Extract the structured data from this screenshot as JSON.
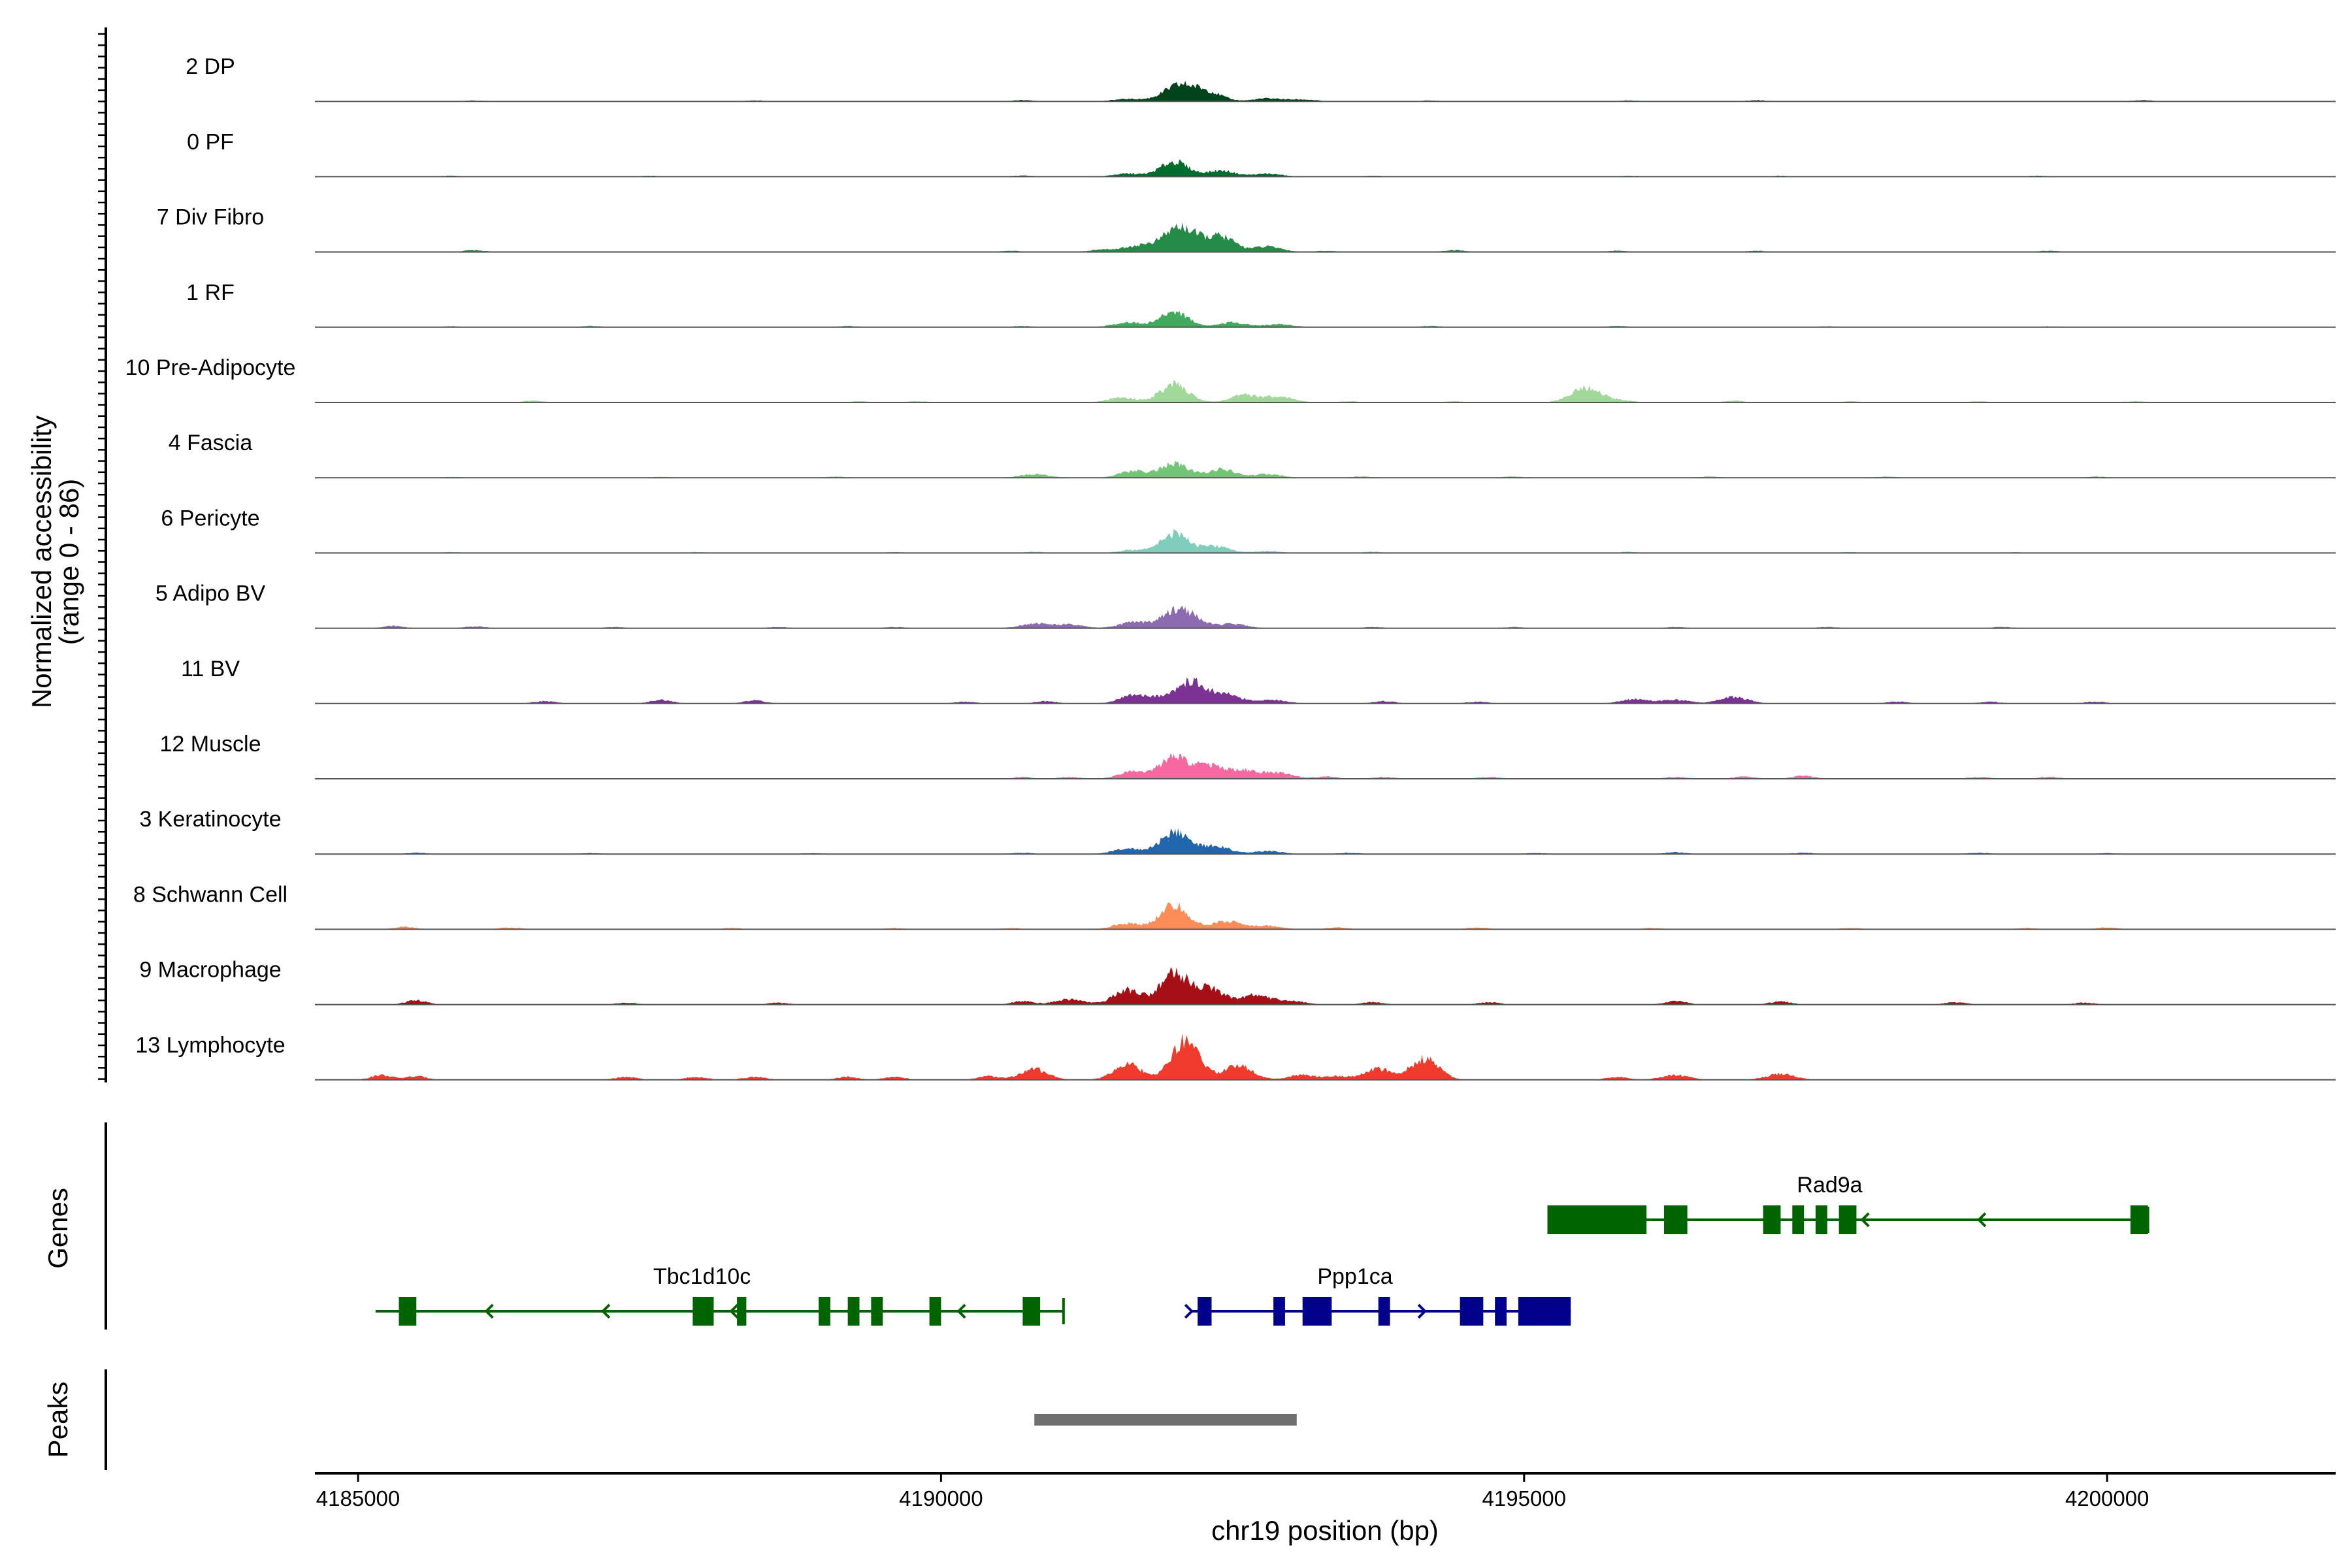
{
  "chart_data": {
    "type": "area",
    "title": "",
    "chromosome": "chr19",
    "xlabel": "chr19 position (bp)",
    "ylabel_line1": "Normalized accessibility",
    "ylabel_line2": "(range 0 - 86)",
    "ylim": [
      0,
      86
    ],
    "xlim": [
      4184630,
      4201960
    ],
    "x_ticks": [
      4185000,
      4190000,
      4195000,
      4200000
    ],
    "x_tick_labels": [
      "4185000",
      "4190000",
      "4195000",
      "4200000"
    ],
    "peak_center": 4192050,
    "tracks": [
      {
        "name": "2 DP",
        "color": "#00441B",
        "peaks": [
          [
            4192050,
            27
          ],
          [
            4192300,
            13
          ],
          [
            4191600,
            4
          ],
          [
            4192800,
            5
          ],
          [
            4193100,
            3
          ]
        ],
        "noise": [
          [
            4186000,
            1.5
          ],
          [
            4188400,
            1.5
          ],
          [
            4190700,
            2
          ],
          [
            4194200,
            1.5
          ],
          [
            4195900,
            1.5
          ],
          [
            4197000,
            2
          ],
          [
            4200300,
            2
          ]
        ]
      },
      {
        "name": "0 PF",
        "color": "#006D2C",
        "peaks": [
          [
            4192000,
            25
          ],
          [
            4192400,
            10
          ],
          [
            4191600,
            5
          ],
          [
            4192800,
            5
          ]
        ],
        "noise": [
          [
            4185800,
            1.5
          ],
          [
            4187500,
            1.5
          ],
          [
            4190700,
            2
          ],
          [
            4193700,
            1.5
          ],
          [
            4195900,
            1.5
          ],
          [
            4197200,
            1.5
          ],
          [
            4199400,
            1.5
          ]
        ]
      },
      {
        "name": "7 Div Fibro",
        "color": "#238B45",
        "peaks": [
          [
            4192050,
            42
          ],
          [
            4192400,
            25
          ],
          [
            4191700,
            10
          ],
          [
            4192800,
            9
          ],
          [
            4191400,
            4
          ]
        ],
        "noise": [
          [
            4186000,
            3
          ],
          [
            4190600,
            2
          ],
          [
            4193300,
            2
          ],
          [
            4194400,
            3
          ],
          [
            4195800,
            2
          ],
          [
            4197000,
            2
          ],
          [
            4199500,
            2
          ]
        ]
      },
      {
        "name": "1 RF",
        "color": "#41AB5D",
        "peaks": [
          [
            4192000,
            26
          ],
          [
            4192500,
            8
          ],
          [
            4191600,
            8
          ],
          [
            4192900,
            5
          ]
        ],
        "noise": [
          [
            4185800,
            1.5
          ],
          [
            4187000,
            2
          ],
          [
            4189200,
            2
          ],
          [
            4190700,
            2
          ],
          [
            4194200,
            2
          ],
          [
            4195800,
            2
          ],
          [
            4197600,
            1.5
          ],
          [
            4199500,
            1.5
          ]
        ]
      },
      {
        "name": "10 Pre-Adipocyte",
        "color": "#A1D99B",
        "peaks": [
          [
            4192000,
            30
          ],
          [
            4192600,
            12
          ],
          [
            4191550,
            8
          ],
          [
            4192900,
            10
          ],
          [
            4195500,
            20
          ],
          [
            4195650,
            8
          ]
        ],
        "noise": [
          [
            4186500,
            3
          ],
          [
            4189300,
            2
          ],
          [
            4189800,
            2
          ],
          [
            4193500,
            2
          ],
          [
            4194400,
            2
          ],
          [
            4195900,
            2
          ],
          [
            4196800,
            3
          ],
          [
            4197800,
            2
          ],
          [
            4198900,
            2
          ],
          [
            4200250,
            2
          ]
        ]
      },
      {
        "name": "4 Fascia",
        "color": "#74C476",
        "peaks": [
          [
            4192000,
            23
          ],
          [
            4192400,
            14
          ],
          [
            4191650,
            11
          ],
          [
            4192800,
            6
          ],
          [
            4190800,
            6
          ]
        ],
        "noise": [
          [
            4185800,
            1.5
          ],
          [
            4187600,
            1.5
          ],
          [
            4189100,
            2
          ],
          [
            4193600,
            2
          ],
          [
            4194900,
            2
          ],
          [
            4196600,
            2
          ],
          [
            4198100,
            2
          ],
          [
            4199900,
            2
          ]
        ]
      },
      {
        "name": "6 Pericyte",
        "color": "#7FCDBB",
        "peaks": [
          [
            4192000,
            33
          ],
          [
            4192350,
            11
          ],
          [
            4191650,
            5
          ],
          [
            4192800,
            3
          ]
        ],
        "noise": [
          [
            4185800,
            1.5
          ],
          [
            4187900,
            1.5
          ],
          [
            4189600,
            1.5
          ],
          [
            4190800,
            2
          ],
          [
            4193700,
            2
          ],
          [
            4195900,
            2
          ],
          [
            4197800,
            1.5
          ],
          [
            4199200,
            1.5
          ]
        ]
      },
      {
        "name": "5 Adipo BV",
        "color": "#8C6BB1",
        "peaks": [
          [
            4192050,
            33
          ],
          [
            4192500,
            7
          ],
          [
            4191650,
            10
          ],
          [
            4190800,
            8
          ],
          [
            4191100,
            6
          ]
        ],
        "noise": [
          [
            4185300,
            4
          ],
          [
            4186000,
            3
          ],
          [
            4187200,
            2
          ],
          [
            4188600,
            2
          ],
          [
            4189600,
            2
          ],
          [
            4193700,
            2
          ],
          [
            4194900,
            2
          ],
          [
            4196300,
            2
          ],
          [
            4197600,
            2
          ],
          [
            4199100,
            2
          ]
        ]
      },
      {
        "name": "11 BV",
        "color": "#7B3294",
        "peaks": [
          [
            4192150,
            36
          ],
          [
            4192450,
            15
          ],
          [
            4191650,
            13
          ],
          [
            4191900,
            9
          ],
          [
            4192850,
            6
          ],
          [
            4196800,
            11
          ],
          [
            4196300,
            6
          ],
          [
            4195950,
            7
          ]
        ],
        "noise": [
          [
            4186600,
            4
          ],
          [
            4187600,
            6
          ],
          [
            4188400,
            5
          ],
          [
            4190200,
            3
          ],
          [
            4190900,
            4
          ],
          [
            4193800,
            4
          ],
          [
            4194600,
            3
          ],
          [
            4198200,
            3
          ],
          [
            4199000,
            3
          ],
          [
            4199900,
            3
          ]
        ]
      },
      {
        "name": "12 Muscle",
        "color": "#F768A1",
        "peaks": [
          [
            4192000,
            36
          ],
          [
            4192300,
            22
          ],
          [
            4191650,
            12
          ],
          [
            4192600,
            14
          ],
          [
            4192900,
            10
          ]
        ],
        "noise": [
          [
            4190700,
            3
          ],
          [
            4191100,
            3
          ],
          [
            4193300,
            4
          ],
          [
            4193800,
            3
          ],
          [
            4194700,
            3
          ],
          [
            4196300,
            3
          ],
          [
            4196900,
            4
          ],
          [
            4197400,
            5
          ],
          [
            4198900,
            3
          ],
          [
            4199500,
            3
          ]
        ]
      },
      {
        "name": "3 Keratinocyte",
        "color": "#2166AC",
        "peaks": [
          [
            4192000,
            36
          ],
          [
            4192350,
            14
          ],
          [
            4191600,
            9
          ],
          [
            4192800,
            5
          ]
        ],
        "noise": [
          [
            4185500,
            2
          ],
          [
            4187000,
            1.5
          ],
          [
            4188900,
            1.5
          ],
          [
            4190700,
            2
          ],
          [
            4193500,
            2
          ],
          [
            4195100,
            1.5
          ],
          [
            4196300,
            3
          ],
          [
            4197400,
            2
          ],
          [
            4198900,
            2
          ],
          [
            4200000,
            1.5
          ]
        ]
      },
      {
        "name": "8 Schwann Cell",
        "color": "#FC8D59",
        "peaks": [
          [
            4192000,
            40
          ],
          [
            4192450,
            14
          ],
          [
            4191600,
            10
          ],
          [
            4192800,
            6
          ]
        ],
        "noise": [
          [
            4185400,
            4
          ],
          [
            4186300,
            3
          ],
          [
            4188200,
            2
          ],
          [
            4189600,
            2
          ],
          [
            4190600,
            2
          ],
          [
            4193400,
            3
          ],
          [
            4194600,
            3
          ],
          [
            4196100,
            2
          ],
          [
            4197800,
            2
          ],
          [
            4199300,
            2
          ],
          [
            4200000,
            3
          ]
        ]
      },
      {
        "name": "9 Macrophage",
        "color": "#A50F15",
        "peaks": [
          [
            4192000,
            52
          ],
          [
            4192300,
            28
          ],
          [
            4191600,
            24
          ],
          [
            4192700,
            16
          ],
          [
            4191100,
            9
          ],
          [
            4193000,
            6
          ]
        ],
        "noise": [
          [
            4185500,
            7
          ],
          [
            4187300,
            3
          ],
          [
            4188600,
            3
          ],
          [
            4190700,
            6
          ],
          [
            4193700,
            4
          ],
          [
            4194700,
            4
          ],
          [
            4196300,
            6
          ],
          [
            4197200,
            5
          ],
          [
            4198700,
            4
          ],
          [
            4199800,
            3
          ]
        ]
      },
      {
        "name": "13 Lymphocyte",
        "color": "#EF3B2C",
        "peaks": [
          [
            4192100,
            65
          ],
          [
            4191600,
            26
          ],
          [
            4192550,
            24
          ],
          [
            4194150,
            35
          ],
          [
            4190800,
            18
          ],
          [
            4193750,
            18
          ],
          [
            4193100,
            8
          ],
          [
            4196300,
            8
          ],
          [
            4197200,
            10
          ]
        ],
        "noise": [
          [
            4185200,
            8
          ],
          [
            4185500,
            6
          ],
          [
            4187300,
            5
          ],
          [
            4187900,
            5
          ],
          [
            4188400,
            5
          ],
          [
            4189200,
            5
          ],
          [
            4189600,
            5
          ],
          [
            4190400,
            6
          ],
          [
            4193400,
            6
          ],
          [
            4195800,
            5
          ]
        ]
      }
    ],
    "genes_label": "Genes",
    "genes": [
      {
        "name": "Rad9a",
        "strand": "-",
        "start": 4195200,
        "end": 4200350,
        "color": "#006400",
        "row": 0,
        "exons": [
          [
            4195200,
            4196050
          ],
          [
            4196200,
            4196400
          ],
          [
            4197050,
            4197200
          ],
          [
            4197300,
            4197400
          ],
          [
            4197500,
            4197600
          ],
          [
            4197700,
            4197850
          ],
          [
            4200200,
            4200350
          ]
        ],
        "arrows": [
          4197900,
          4198900
        ]
      },
      {
        "name": "Tbc1d10c",
        "strand": "-",
        "start": 4185150,
        "end": 4191050,
        "color": "#006400",
        "row": 1,
        "exons": [
          [
            4185350,
            4185500
          ],
          [
            4187870,
            4188050
          ],
          [
            4188250,
            4188330
          ],
          [
            4188950,
            4189050
          ],
          [
            4189200,
            4189300
          ],
          [
            4189400,
            4189500
          ],
          [
            4189900,
            4190000
          ],
          [
            4190700,
            4190850
          ]
        ],
        "arrows": [
          4186100,
          4187100,
          4188200,
          4189200,
          4190150
        ]
      },
      {
        "name": "Ppp1ca",
        "strand": "+",
        "start": 4192150,
        "end": 4195400,
        "color": "#00008B",
        "row": 1,
        "exons": [
          [
            4192200,
            4192320
          ],
          [
            4192850,
            4192950
          ],
          [
            4193100,
            4193350
          ],
          [
            4193750,
            4193850
          ],
          [
            4194450,
            4194650
          ],
          [
            4194750,
            4194850
          ],
          [
            4194950,
            4195400
          ]
        ],
        "arrows": [
          4192150,
          4194150
        ]
      }
    ],
    "peaks_label": "Peaks",
    "peak_regions": [
      [
        4190800,
        4193050
      ]
    ]
  }
}
